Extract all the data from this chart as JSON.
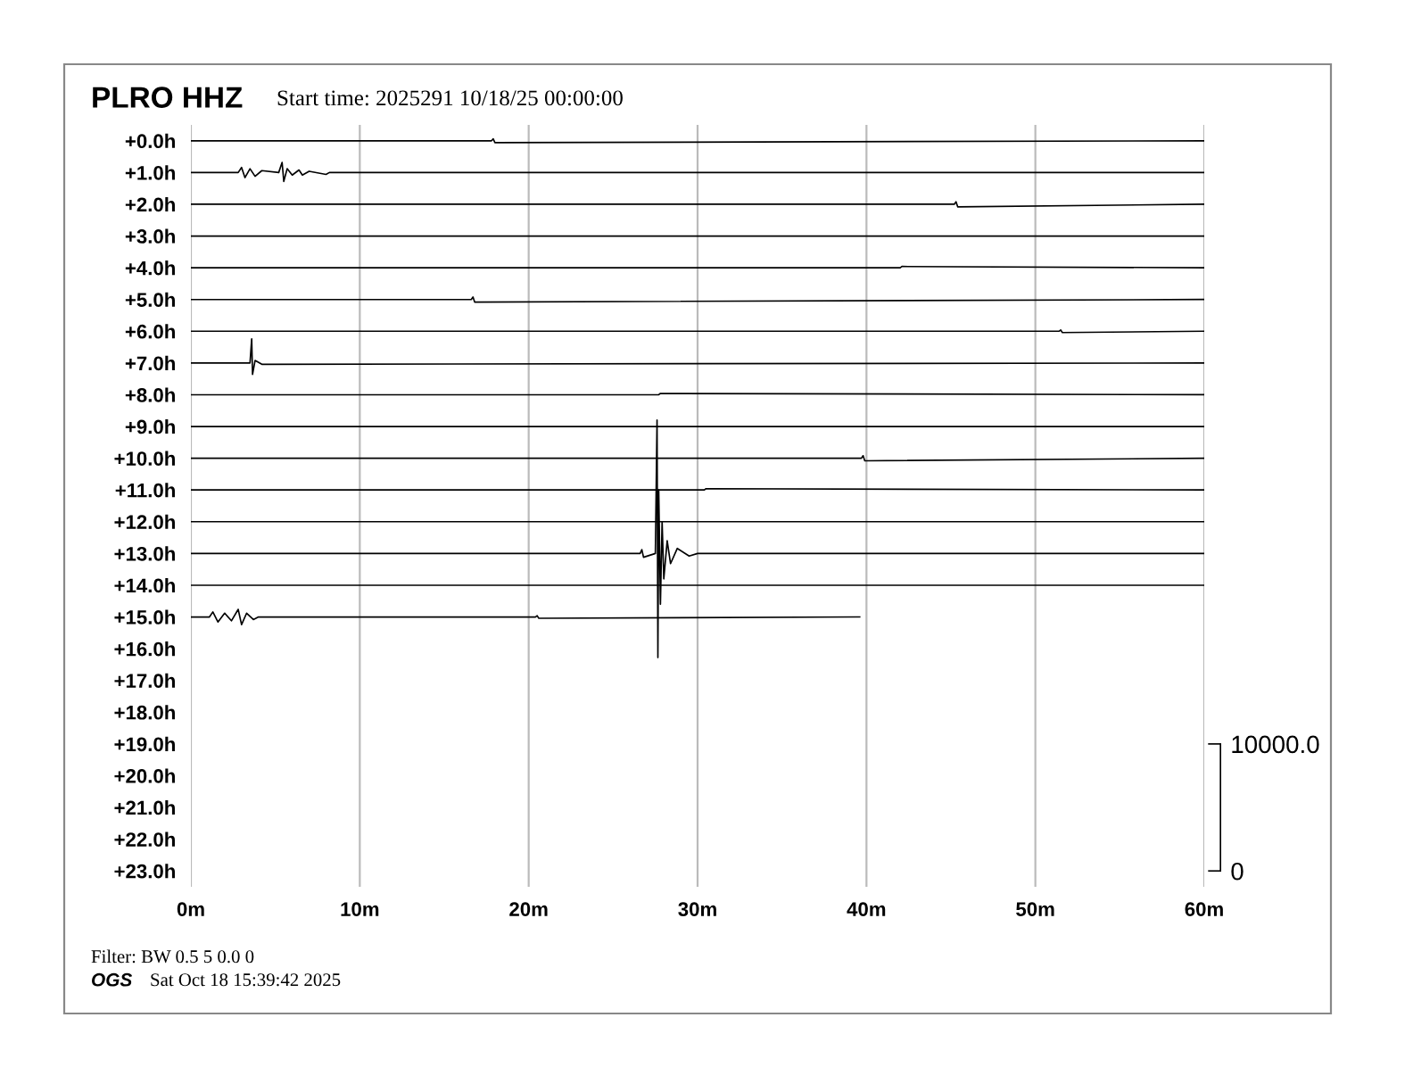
{
  "chart_data": {
    "type": "line",
    "title": "PLRO HHZ",
    "subtitle": "Start time: 2025291 10/18/25 00:00:00",
    "annotations": [
      "Filter: BW 0.5 5 0.0 0",
      "OGS",
      "Sat Oct 18 15:39:42 2025"
    ],
    "xlim": [
      0,
      60
    ],
    "xticks": [
      {
        "value": 0,
        "label": "0m"
      },
      {
        "value": 10,
        "label": "10m"
      },
      {
        "value": 20,
        "label": "20m"
      },
      {
        "value": 30,
        "label": "30m"
      },
      {
        "value": 40,
        "label": "40m"
      },
      {
        "value": 50,
        "label": "50m"
      },
      {
        "value": 60,
        "label": "60m"
      }
    ],
    "ylim": [
      23.5,
      -0.5
    ],
    "yticks": [
      {
        "value": 0,
        "label": "+0.0h"
      },
      {
        "value": 1,
        "label": "+1.0h"
      },
      {
        "value": 2,
        "label": "+2.0h"
      },
      {
        "value": 3,
        "label": "+3.0h"
      },
      {
        "value": 4,
        "label": "+4.0h"
      },
      {
        "value": 5,
        "label": "+5.0h"
      },
      {
        "value": 6,
        "label": "+6.0h"
      },
      {
        "value": 7,
        "label": "+7.0h"
      },
      {
        "value": 8,
        "label": "+8.0h"
      },
      {
        "value": 9,
        "label": "+9.0h"
      },
      {
        "value": 10,
        "label": "+10.0h"
      },
      {
        "value": 11,
        "label": "+11.0h"
      },
      {
        "value": 12,
        "label": "+12.0h"
      },
      {
        "value": 13,
        "label": "+13.0h"
      },
      {
        "value": 14,
        "label": "+14.0h"
      },
      {
        "value": 15,
        "label": "+15.0h"
      },
      {
        "value": 16,
        "label": "+16.0h"
      },
      {
        "value": 17,
        "label": "+17.0h"
      },
      {
        "value": 18,
        "label": "+18.0h"
      },
      {
        "value": 19,
        "label": "+19.0h"
      },
      {
        "value": 20,
        "label": "+20.0h"
      },
      {
        "value": 21,
        "label": "+21.0h"
      },
      {
        "value": 22,
        "label": "+22.0h"
      },
      {
        "value": 23,
        "label": "+23.0h"
      }
    ],
    "y2lim": [
      -1250,
      58750
    ],
    "y2ticks": [
      {
        "value": 0,
        "label": "0"
      },
      {
        "value": 10000,
        "label": "10000.0"
      }
    ],
    "grid": "x",
    "marker": "none",
    "line_style": "solid",
    "series": [
      {
        "color": "#000000",
        "x": [
          0,
          17.8,
          17.9,
          18.0,
          60
        ],
        "values": [
          0,
          0,
          -0.06,
          0.06,
          0
        ]
      },
      {
        "color": "#000000",
        "x": [
          0,
          2.8,
          3.0,
          3.2,
          3.5,
          3.8,
          4.2,
          5.2,
          5.4,
          5.5,
          5.7,
          6.0,
          6.4,
          6.6,
          7.0,
          8.0,
          8.2,
          60
        ],
        "values": [
          1,
          1,
          0.84,
          1.16,
          0.88,
          1.12,
          0.94,
          1,
          0.68,
          1.28,
          0.88,
          1.08,
          0.92,
          1.08,
          0.96,
          1.06,
          1,
          1
        ]
      },
      {
        "color": "#000000",
        "x": [
          0,
          45.2,
          45.3,
          45.4,
          60
        ],
        "values": [
          2,
          2,
          1.92,
          2.08,
          2
        ]
      },
      {
        "color": "#000000",
        "x": [
          0,
          60
        ],
        "values": [
          3,
          3
        ]
      },
      {
        "color": "#000000",
        "x": [
          0,
          42.0,
          42.1,
          60
        ],
        "values": [
          4,
          4,
          3.96,
          4
        ]
      },
      {
        "color": "#000000",
        "x": [
          0,
          16.6,
          16.7,
          16.8,
          60
        ],
        "values": [
          5,
          5,
          4.92,
          5.08,
          5
        ]
      },
      {
        "color": "#000000",
        "x": [
          0,
          51.4,
          51.5,
          51.6,
          60
        ],
        "values": [
          6,
          6,
          5.96,
          6.04,
          6
        ]
      },
      {
        "color": "#000000",
        "x": [
          0,
          3.5,
          3.6,
          3.65,
          3.8,
          4.2,
          60
        ],
        "values": [
          7,
          7,
          6.24,
          7.36,
          6.92,
          7.04,
          7
        ]
      },
      {
        "color": "#000000",
        "x": [
          0,
          27.7,
          27.8,
          60
        ],
        "values": [
          8,
          8,
          7.96,
          8
        ]
      },
      {
        "color": "#000000",
        "x": [
          0,
          60
        ],
        "values": [
          9,
          9
        ]
      },
      {
        "color": "#000000",
        "x": [
          0,
          39.7,
          39.8,
          39.9,
          60
        ],
        "values": [
          10,
          10,
          9.92,
          10.08,
          10
        ]
      },
      {
        "color": "#000000",
        "x": [
          0,
          30.4,
          30.5,
          60
        ],
        "values": [
          11,
          11,
          10.96,
          11
        ]
      },
      {
        "color": "#000000",
        "x": [
          0,
          60
        ],
        "values": [
          12,
          12
        ]
      },
      {
        "color": "#000000",
        "x": [
          0,
          26.6,
          26.7,
          26.8,
          27.5,
          27.6,
          27.65,
          27.7,
          27.8,
          27.9,
          28.0,
          28.2,
          28.4,
          28.8,
          29.5,
          30,
          60
        ],
        "values": [
          13,
          13,
          12.88,
          13.12,
          13,
          8.8,
          16.28,
          11,
          14.6,
          12,
          13.8,
          12.6,
          13.32,
          12.84,
          13.08,
          13,
          13
        ]
      },
      {
        "color": "#000000",
        "x": [
          0,
          60
        ],
        "values": [
          14,
          14
        ]
      },
      {
        "color": "#000000",
        "x": [
          0,
          1.1,
          1.3,
          1.6,
          2.0,
          2.4,
          2.8,
          3.0,
          3.3,
          3.7,
          4.0,
          20.4,
          20.5,
          20.6,
          39.6
        ],
        "values": [
          15,
          15,
          14.84,
          15.16,
          14.88,
          15.12,
          14.76,
          15.24,
          14.88,
          15.08,
          15,
          15,
          14.96,
          15.04,
          15
        ]
      }
    ]
  }
}
